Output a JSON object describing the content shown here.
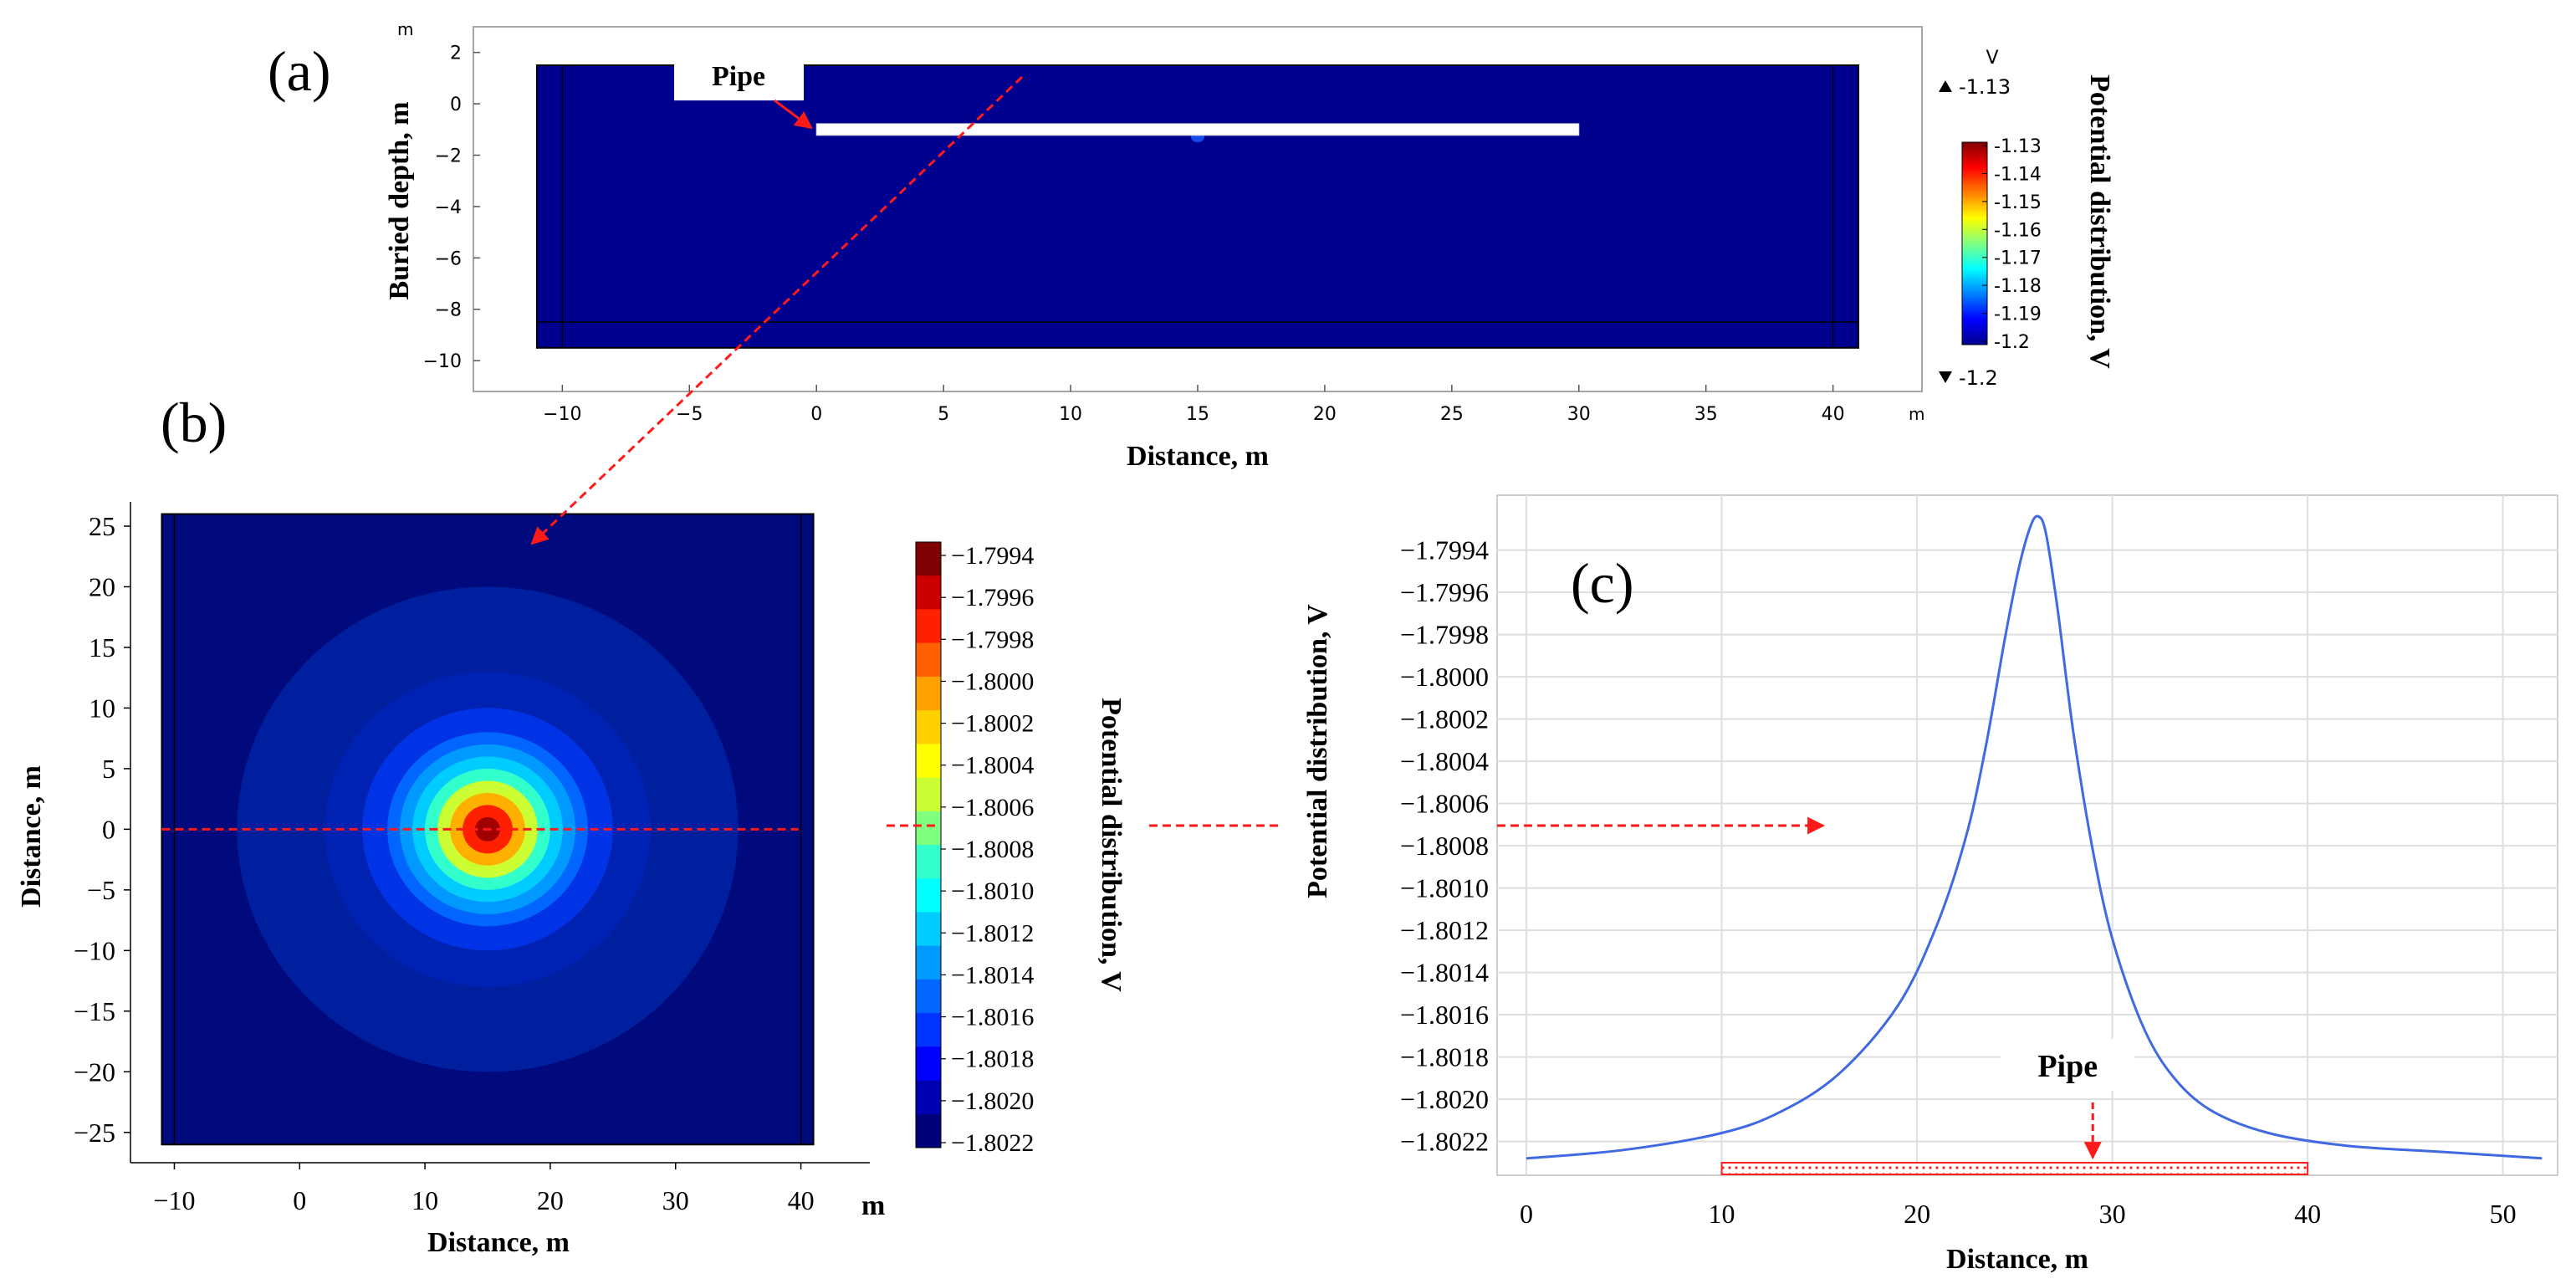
{
  "panel_labels": [
    "(a)",
    "(b)",
    "(c)"
  ],
  "chart_data": [
    {
      "panel": "(a)",
      "type": "heatmap",
      "xlabel": "Distance, m",
      "ylabel": "Buried depth, m",
      "x_unit": "m",
      "y_unit": "m",
      "xlim": [
        -13.5,
        43.5
      ],
      "ylim": [
        -11.2,
        3
      ],
      "x_ticks": [
        -10,
        -5,
        0,
        5,
        10,
        15,
        20,
        25,
        30,
        35,
        40
      ],
      "y_ticks": [
        2,
        0,
        -2,
        -4,
        -6,
        -8,
        -10
      ],
      "domain_x": [
        -11,
        41
      ],
      "domain_y": [
        -9.5,
        1.5
      ],
      "inner_boundary_x": [
        -10,
        40
      ],
      "inner_boundary_y": -8.5,
      "pipe": {
        "x": [
          0,
          30
        ],
        "depth": -1
      },
      "annotation": "Pipe",
      "hotspot": {
        "x": 15,
        "y": -1.3
      },
      "colorbar": {
        "title": "Potential distribution, V",
        "unit": "V",
        "max_label": "-1.13",
        "min_label": "-1.2",
        "ticks": [
          "-1.13",
          "-1.14",
          "-1.15",
          "-1.16",
          "-1.17",
          "-1.18",
          "-1.19",
          "-1.2"
        ],
        "colors": [
          "#7f0000",
          "#ff0000",
          "#ff8000",
          "#ffff00",
          "#80ff80",
          "#00ffff",
          "#0080ff",
          "#0000ff",
          "#00008f"
        ]
      }
    },
    {
      "panel": "(b)",
      "type": "heatmap",
      "xlabel": "Distance, m",
      "ylabel": "Distance, m",
      "x_unit": "m",
      "xlim": [
        -13.5,
        45.5
      ],
      "ylim": [
        -27.5,
        27
      ],
      "x_ticks": [
        -10,
        0,
        10,
        20,
        30,
        40
      ],
      "y_ticks": [
        25,
        20,
        15,
        10,
        5,
        0,
        -5,
        -10,
        -15,
        -20,
        -25
      ],
      "domain_x": [
        -11,
        41
      ],
      "domain_y": [
        -26,
        26
      ],
      "inner_boundary_x": [
        -10,
        40
      ],
      "center": {
        "x": 15,
        "y": 0
      },
      "contour_radii": [
        1,
        2,
        3,
        4,
        5,
        6,
        7,
        8,
        10,
        13,
        20
      ],
      "contour_colors": [
        "#a00000",
        "#ff2000",
        "#ffb000",
        "#ccff33",
        "#33ffcc",
        "#00ccff",
        "#0099ff",
        "#0066ff",
        "#0033e6",
        "#0022b3",
        "#001f9e"
      ],
      "background_color": "#000a7d",
      "section_line_y": 0,
      "colorbar": {
        "title": "Potential distribution, V",
        "ticks": [
          "-1.7994",
          "-1.7996",
          "-1.7998",
          "-1.8000",
          "-1.8002",
          "-1.8004",
          "-1.8006",
          "-1.8008",
          "-1.8010",
          "-1.8012",
          "-1.8014",
          "-1.8016",
          "-1.8018",
          "-1.8020",
          "-1.8022"
        ],
        "colors": [
          "#7f0000",
          "#cc0000",
          "#ff2000",
          "#ff6000",
          "#ffa000",
          "#ffd000",
          "#ffff00",
          "#ccff33",
          "#80ff80",
          "#33ffcc",
          "#00ffff",
          "#00ccff",
          "#0099ff",
          "#0066ff",
          "#0033ff",
          "#0000ff",
          "#0000b3",
          "#00007a"
        ]
      }
    },
    {
      "panel": "(c)",
      "type": "line",
      "xlabel": "Distance, m",
      "ylabel": "Potential distribution, V",
      "xlim": [
        -1.5,
        52.8
      ],
      "ylim": [
        -1.80236,
        -1.79914
      ],
      "x_ticks": [
        0,
        10,
        20,
        30,
        40,
        50
      ],
      "y_ticks": [
        -1.7994,
        -1.7996,
        -1.7998,
        -1.8,
        -1.8002,
        -1.8004,
        -1.8006,
        -1.8008,
        -1.801,
        -1.8012,
        -1.8014,
        -1.8016,
        -1.8018,
        -1.802,
        -1.8022
      ],
      "y_tick_labels": [
        "-1.7994",
        "-1.7996",
        "-1.7998",
        "-1.8000",
        "-1.8002",
        "-1.8004",
        "-1.8006",
        "-1.8008",
        "-1.8010",
        "-1.8012",
        "-1.8014",
        "-1.8016",
        "-1.8018",
        "-1.8020",
        "-1.8022"
      ],
      "grid": true,
      "series": [
        {
          "color": "#4169e1",
          "x": [
            0,
            5,
            10,
            13,
            16,
            19,
            21,
            22.5,
            23.5,
            24.5,
            25.2,
            25.8,
            26.2,
            26.6,
            27.2,
            28,
            29,
            30,
            31.5,
            33,
            35,
            38,
            42,
            47,
            52
          ],
          "y": [
            -1.80228,
            -1.80224,
            -1.80216,
            -1.80206,
            -1.80188,
            -1.80156,
            -1.80118,
            -1.80076,
            -1.80034,
            -1.79982,
            -1.79949,
            -1.79929,
            -1.79924,
            -1.79932,
            -1.79968,
            -1.80026,
            -1.80082,
            -1.80124,
            -1.80164,
            -1.80188,
            -1.80205,
            -1.80216,
            -1.80222,
            -1.80225,
            -1.80228
          ]
        }
      ],
      "pipe_span": [
        10,
        40
      ],
      "annotation": "Pipe",
      "annotation_arrow_x": 29
    }
  ]
}
